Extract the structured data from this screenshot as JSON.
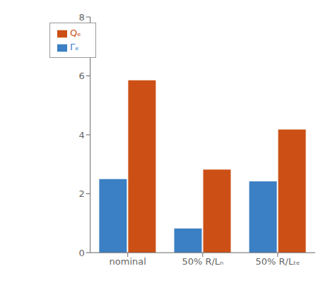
{
  "chart_data": {
    "type": "bar",
    "categories": [
      "nominal",
      "50% R/Lₙ",
      "50% R/Lₜₑ"
    ],
    "series": [
      {
        "name": "Γₑ",
        "color": "#3b7fc4",
        "values": [
          2.5,
          0.82,
          2.42
        ]
      },
      {
        "name": "Qₑ",
        "color": "#cc5015",
        "values": [
          5.85,
          2.82,
          4.18
        ]
      }
    ],
    "ylim": [
      0,
      8
    ],
    "yticks": [
      0,
      2,
      4,
      6,
      8
    ],
    "grid": false,
    "legend": "upper left"
  }
}
